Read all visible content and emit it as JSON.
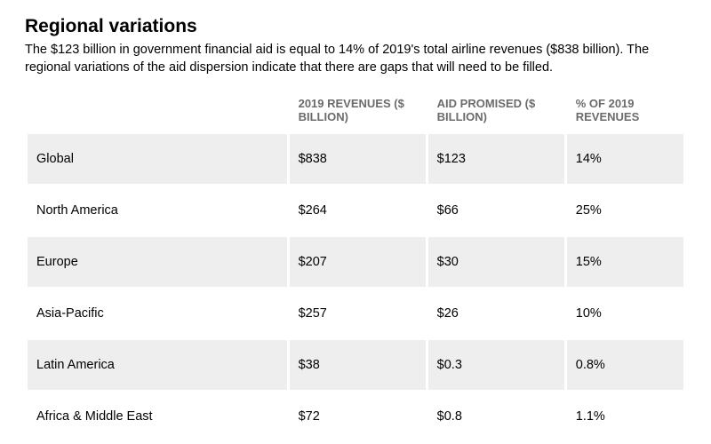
{
  "title": "Regional variations",
  "subtitle": "The $123 billion in government financial aid is equal to 14% of 2019's total airline revenues ($838 billion). The regional variations of the aid dispersion indicate that there are gaps that will need to be filled.",
  "table": {
    "type": "table",
    "background_color": "#ffffff",
    "row_stripe_color": "#eeeeee",
    "header_text_color": "#6b6b6b",
    "cell_text_color": "#000000",
    "header_fontsize": 13,
    "cell_fontsize": 14.5,
    "column_widths_pct": [
      40,
      21,
      21,
      18
    ],
    "columns": [
      "",
      "2019 REVENUES ($ BILLION)",
      "AID PROMISED ($ BILLION)",
      "% OF 2019 REVENUES"
    ],
    "rows": [
      [
        "Global",
        "$838",
        "$123",
        "14%"
      ],
      [
        "North America",
        "$264",
        "$66",
        "25%"
      ],
      [
        "Europe",
        "$207",
        "$30",
        "15%"
      ],
      [
        "Asia-Pacific",
        "$257",
        "$26",
        "10%"
      ],
      [
        "Latin America",
        "$38",
        "$0.3",
        "0.8%"
      ],
      [
        "Africa & Middle East",
        "$72",
        "$0.8",
        "1.1%"
      ]
    ]
  }
}
